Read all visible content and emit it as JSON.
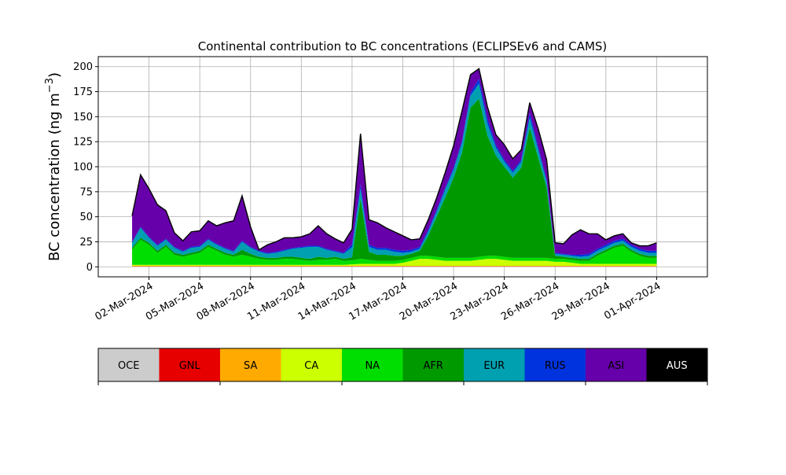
{
  "chart_data": {
    "type": "area",
    "stacked": true,
    "title": "Continental contribution to BC concentrations (ECLIPSEv6 and CAMS)",
    "ylabel_main": "BC concentration (ng m",
    "ylabel_exp": "−3",
    "ylabel_close": ")",
    "ylim": [
      -10,
      210
    ],
    "yticks": [
      0,
      25,
      50,
      75,
      100,
      125,
      150,
      175,
      200
    ],
    "x_range": [
      "2024-02-28T00:00",
      "2024-04-04T00:00"
    ],
    "xtick_labels": [
      "02-Mar-2024",
      "05-Mar-2024",
      "08-Mar-2024",
      "11-Mar-2024",
      "14-Mar-2024",
      "17-Mar-2024",
      "20-Mar-2024",
      "23-Mar-2024",
      "26-Mar-2024",
      "29-Mar-2024",
      "01-Apr-2024"
    ],
    "xtick_dates": [
      "2024-03-02",
      "2024-03-05",
      "2024-03-08",
      "2024-03-11",
      "2024-03-14",
      "2024-03-17",
      "2024-03-20",
      "2024-03-23",
      "2024-03-26",
      "2024-03-29",
      "2024-04-01"
    ],
    "grid": true,
    "dates": [
      "2024-03-01T00:00",
      "2024-03-01T12:00",
      "2024-03-02T00:00",
      "2024-03-02T12:00",
      "2024-03-03T00:00",
      "2024-03-03T12:00",
      "2024-03-04T00:00",
      "2024-03-04T12:00",
      "2024-03-05T00:00",
      "2024-03-05T12:00",
      "2024-03-06T00:00",
      "2024-03-06T12:00",
      "2024-03-07T00:00",
      "2024-03-07T12:00",
      "2024-03-08T00:00",
      "2024-03-08T12:00",
      "2024-03-09T00:00",
      "2024-03-09T12:00",
      "2024-03-10T00:00",
      "2024-03-10T12:00",
      "2024-03-11T00:00",
      "2024-03-11T12:00",
      "2024-03-12T00:00",
      "2024-03-12T12:00",
      "2024-03-13T00:00",
      "2024-03-13T12:00",
      "2024-03-14T00:00",
      "2024-03-14T12:00",
      "2024-03-15T00:00",
      "2024-03-15T12:00",
      "2024-03-16T00:00",
      "2024-03-16T12:00",
      "2024-03-17T00:00",
      "2024-03-17T12:00",
      "2024-03-18T00:00",
      "2024-03-18T12:00",
      "2024-03-19T00:00",
      "2024-03-19T12:00",
      "2024-03-20T00:00",
      "2024-03-20T12:00",
      "2024-03-21T00:00",
      "2024-03-21T12:00",
      "2024-03-22T00:00",
      "2024-03-22T12:00",
      "2024-03-23T00:00",
      "2024-03-23T12:00",
      "2024-03-24T00:00",
      "2024-03-24T12:00",
      "2024-03-25T00:00",
      "2024-03-25T12:00",
      "2024-03-26T00:00",
      "2024-03-26T12:00",
      "2024-03-27T00:00",
      "2024-03-27T12:00",
      "2024-03-28T00:00",
      "2024-03-28T12:00",
      "2024-03-29T00:00",
      "2024-03-29T12:00",
      "2024-03-30T00:00",
      "2024-03-30T12:00",
      "2024-03-31T00:00",
      "2024-03-31T12:00",
      "2024-04-01T00:00"
    ],
    "series": [
      {
        "name": "OCE",
        "color": "#cccccc",
        "values": [
          0.3,
          0.3,
          0.3,
          0.3,
          0.3,
          0.3,
          0.3,
          0.3,
          0.3,
          0.3,
          0.3,
          0.3,
          0.3,
          0.3,
          0.3,
          0.3,
          0.3,
          0.3,
          0.3,
          0.3,
          0.3,
          0.3,
          0.3,
          0.3,
          0.3,
          0.3,
          0.3,
          0.3,
          0.3,
          0.3,
          0.3,
          0.3,
          0.3,
          0.3,
          0.3,
          0.3,
          0.3,
          0.3,
          0.3,
          0.3,
          0.3,
          0.3,
          0.3,
          0.3,
          0.3,
          0.3,
          0.3,
          0.3,
          0.3,
          0.3,
          0.3,
          0.3,
          0.3,
          0.3,
          0.3,
          0.3,
          0.3,
          0.3,
          0.3,
          0.3,
          0.3,
          0.3,
          0.3
        ]
      },
      {
        "name": "GNL",
        "color": "#e60000",
        "values": [
          0.2,
          0.2,
          0.2,
          0.2,
          0.2,
          0.2,
          0.2,
          0.2,
          0.2,
          0.2,
          0.2,
          0.2,
          0.2,
          0.2,
          0.2,
          0.2,
          0.2,
          0.2,
          0.2,
          0.2,
          0.2,
          0.2,
          0.2,
          0.2,
          0.2,
          0.2,
          0.2,
          0.2,
          0.2,
          0.2,
          0.2,
          0.2,
          0.2,
          0.2,
          0.2,
          0.2,
          0.2,
          0.2,
          0.2,
          0.2,
          0.2,
          0.2,
          0.2,
          0.2,
          0.2,
          0.2,
          0.2,
          0.2,
          0.2,
          0.2,
          0.2,
          0.2,
          0.2,
          0.2,
          0.2,
          0.2,
          0.2,
          0.2,
          0.2,
          0.2,
          0.2,
          0.2,
          0.2
        ]
      },
      {
        "name": "SA",
        "color": "#ffaa00",
        "values": [
          0.5,
          0.5,
          0.5,
          0.5,
          0.5,
          0.5,
          0.5,
          0.5,
          0.5,
          0.5,
          0.5,
          0.5,
          0.5,
          0.5,
          0.5,
          0.5,
          0.5,
          0.5,
          0.5,
          0.5,
          0.5,
          0.5,
          0.5,
          0.5,
          0.5,
          0.5,
          0.5,
          0.5,
          0.5,
          0.5,
          0.5,
          0.5,
          0.5,
          0.5,
          0.5,
          0.5,
          0.5,
          0.5,
          0.5,
          0.5,
          0.5,
          0.5,
          0.5,
          0.5,
          0.5,
          0.5,
          0.5,
          0.5,
          0.5,
          0.5,
          0.5,
          0.5,
          0.5,
          0.5,
          0.5,
          0.5,
          0.5,
          0.5,
          0.5,
          0.5,
          0.5,
          0.5,
          0.5
        ]
      },
      {
        "name": "CA",
        "color": "#ccff00",
        "values": [
          1,
          1,
          1,
          1,
          1,
          1,
          1,
          1,
          1,
          1,
          1,
          1,
          1,
          1,
          1,
          1,
          1,
          1,
          1,
          1,
          1,
          1,
          1,
          1,
          1,
          1,
          1.5,
          2,
          2,
          2,
          2,
          2,
          3,
          5,
          7,
          7,
          6,
          5,
          5,
          5,
          5,
          6,
          7,
          7,
          6,
          5,
          5,
          5,
          5,
          5,
          4,
          4,
          3,
          2,
          2,
          2,
          2,
          2,
          2,
          2,
          2,
          2,
          2
        ]
      },
      {
        "name": "NA",
        "color": "#00dd00",
        "values": [
          15,
          25,
          20,
          12,
          18,
          10,
          8,
          10,
          12,
          18,
          14,
          10,
          8,
          10,
          8,
          6,
          5,
          5,
          6,
          6,
          5,
          4,
          5,
          5,
          6,
          4,
          4,
          5,
          4,
          3,
          3,
          3,
          3,
          3,
          3,
          3,
          3,
          3,
          3,
          3,
          3,
          3,
          3,
          3,
          3,
          3,
          3,
          3,
          3,
          3,
          3,
          3,
          3,
          3,
          3,
          8,
          12,
          16,
          18,
          12,
          8,
          6,
          6
        ]
      },
      {
        "name": "AFR",
        "color": "#009900",
        "values": [
          2,
          2,
          2,
          2,
          2,
          2,
          2,
          2,
          2,
          2,
          2,
          2,
          2,
          5,
          3,
          2,
          2,
          2,
          2,
          2,
          2,
          2,
          3,
          2,
          2,
          2,
          3,
          60,
          8,
          6,
          6,
          5,
          4,
          4,
          5,
          20,
          40,
          60,
          80,
          105,
          150,
          158,
          120,
          100,
          90,
          80,
          90,
          130,
          100,
          70,
          3,
          2,
          2,
          2,
          2,
          2,
          2,
          2,
          2,
          2,
          2,
          2,
          2
        ]
      },
      {
        "name": "EUR",
        "color": "#00a0b0",
        "values": [
          5,
          10,
          5,
          5,
          5,
          5,
          3,
          5,
          4,
          5,
          4,
          4,
          3,
          8,
          6,
          5,
          4,
          5,
          6,
          8,
          10,
          12,
          10,
          8,
          5,
          5,
          10,
          10,
          5,
          5,
          5,
          4,
          3,
          2,
          2,
          4,
          5,
          8,
          8,
          10,
          12,
          15,
          12,
          8,
          5,
          5,
          6,
          10,
          8,
          6,
          2,
          2,
          2,
          2,
          3,
          3,
          3,
          3,
          3,
          3,
          3,
          3,
          3
        ]
      },
      {
        "name": "RUS",
        "color": "#0033dd",
        "values": [
          1,
          1,
          1,
          1,
          1,
          1,
          1,
          1,
          1,
          1,
          1,
          1,
          1,
          1,
          1,
          1,
          1,
          1,
          1,
          1,
          1,
          1,
          1,
          1,
          1,
          1,
          3,
          5,
          2,
          2,
          2,
          2,
          2,
          2,
          2,
          2,
          2,
          2,
          2,
          2,
          3,
          5,
          5,
          3,
          2,
          2,
          2,
          5,
          3,
          2,
          1,
          1,
          1,
          2,
          2,
          2,
          2,
          2,
          2,
          2,
          2,
          2,
          2
        ]
      },
      {
        "name": "ASI",
        "color": "#6600aa",
        "values": [
          26,
          52,
          48,
          40,
          28,
          14,
          10,
          15,
          15,
          18,
          18,
          25,
          30,
          45,
          20,
          1,
          8,
          10,
          12,
          10,
          10,
          12,
          20,
          15,
          12,
          10,
          15,
          50,
          25,
          25,
          20,
          18,
          15,
          10,
          8,
          10,
          12,
          15,
          22,
          30,
          18,
          10,
          12,
          10,
          15,
          12,
          10,
          10,
          18,
          20,
          10,
          10,
          20,
          25,
          20,
          15,
          5,
          5,
          5,
          2,
          3,
          5,
          8
        ]
      },
      {
        "name": "AUS",
        "color": "#000000",
        "values": [
          0,
          0,
          0,
          0,
          0,
          0,
          0,
          0,
          0,
          0,
          0,
          0,
          0,
          0,
          0,
          0,
          0,
          0,
          0,
          0,
          0,
          0,
          0,
          0,
          0,
          0,
          0,
          0,
          0,
          0,
          0,
          0,
          0,
          0,
          0,
          0,
          0,
          0,
          0,
          0,
          0,
          0,
          0,
          0,
          0,
          0,
          0,
          0,
          0,
          0,
          0,
          0,
          0,
          0,
          0,
          0,
          0,
          0,
          0,
          0,
          0,
          0,
          0
        ]
      }
    ],
    "legend": {
      "placement": "bottom",
      "labels": [
        "OCE",
        "GNL",
        "SA",
        "CA",
        "NA",
        "AFR",
        "EUR",
        "RUS",
        "ASI",
        "AUS"
      ],
      "text_colors": [
        "#000000",
        "#000000",
        "#000000",
        "#000000",
        "#000000",
        "#000000",
        "#000000",
        "#000000",
        "#000000",
        "#ffffff"
      ]
    }
  }
}
